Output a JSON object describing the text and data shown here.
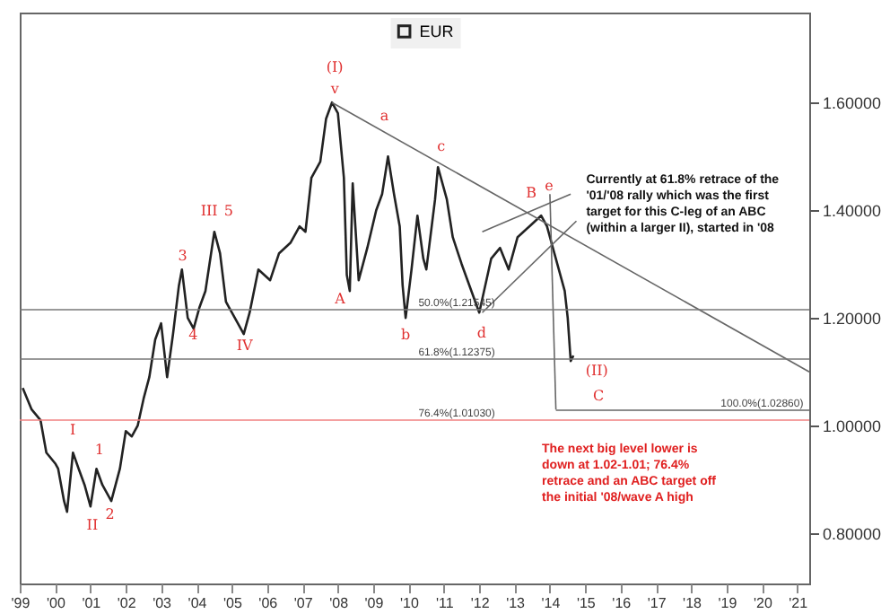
{
  "chart_data": {
    "type": "line",
    "legend": "top",
    "xlim": [
      "1999-07",
      "2021-11"
    ],
    "ylim": [
      0.707,
      1.767
    ],
    "xticks": [
      {
        "value": "1999-07",
        "label": "'99"
      },
      {
        "value": "2000-07",
        "label": "'00"
      },
      {
        "value": "2001-07",
        "label": "'01"
      },
      {
        "value": "2002-07",
        "label": "'02"
      },
      {
        "value": "2003-07",
        "label": "'03"
      },
      {
        "value": "2004-07",
        "label": "'04"
      },
      {
        "value": "2005-07",
        "label": "'05"
      },
      {
        "value": "2006-07",
        "label": "'06"
      },
      {
        "value": "2007-07",
        "label": "'07"
      },
      {
        "value": "2008-07",
        "label": "'08"
      },
      {
        "value": "2009-07",
        "label": "'09"
      },
      {
        "value": "2010-07",
        "label": "'10"
      },
      {
        "value": "2011-07",
        "label": "'11"
      },
      {
        "value": "2012-07",
        "label": "'12"
      },
      {
        "value": "2013-07",
        "label": "'13"
      },
      {
        "value": "2014-07",
        "label": "'14"
      },
      {
        "value": "2015-07",
        "label": "'15"
      },
      {
        "value": "2016-07",
        "label": "'16"
      },
      {
        "value": "2017-07",
        "label": "'17"
      },
      {
        "value": "2018-07",
        "label": "'18"
      },
      {
        "value": "2019-07",
        "label": "'19"
      },
      {
        "value": "2020-07",
        "label": "'20"
      },
      {
        "value": "2021-07",
        "label": "'21"
      }
    ],
    "yticks": [
      {
        "value": 1.6,
        "label": "1.60000"
      },
      {
        "value": 1.4,
        "label": "1.40000"
      },
      {
        "value": 1.2,
        "label": "1.20000"
      },
      {
        "value": 1.0,
        "label": "1.00000"
      },
      {
        "value": 0.8,
        "label": "0.80000"
      }
    ],
    "series": [
      {
        "name": "EUR",
        "color": "#222222",
        "x": [
          "1999-08",
          "1999-11",
          "2000-02",
          "2000-04",
          "2000-07",
          "2000-08",
          "2000-10",
          "2000-11",
          "2001-01",
          "2001-03",
          "2001-05",
          "2001-07",
          "2001-09",
          "2001-11",
          "2002-02",
          "2002-05",
          "2002-07",
          "2002-09",
          "2002-11",
          "2003-01",
          "2003-03",
          "2003-05",
          "2003-07",
          "2003-09",
          "2003-11",
          "2004-01",
          "2004-02",
          "2004-04",
          "2004-06",
          "2004-08",
          "2004-10",
          "2005-01",
          "2005-03",
          "2005-05",
          "2005-08",
          "2005-11",
          "2006-01",
          "2006-04",
          "2006-08",
          "2006-11",
          "2007-03",
          "2007-06",
          "2007-08",
          "2007-10",
          "2008-01",
          "2008-03",
          "2008-05",
          "2008-07",
          "2008-09",
          "2008-10",
          "2008-11",
          "2008-12",
          "2009-02",
          "2009-05",
          "2009-08",
          "2009-10",
          "2009-12",
          "2010-02",
          "2010-04",
          "2010-05",
          "2010-06",
          "2010-08",
          "2010-10",
          "2010-12",
          "2011-01",
          "2011-04",
          "2011-05",
          "2011-08",
          "2011-10",
          "2012-01",
          "2012-05",
          "2012-07",
          "2012-11",
          "2013-02",
          "2013-05",
          "2013-08",
          "2013-12",
          "2014-04",
          "2014-06",
          "2014-10",
          "2014-12",
          "2015-01",
          "2015-02",
          "2015-03"
        ],
        "values": [
          1.07,
          1.03,
          1.01,
          0.95,
          0.93,
          0.92,
          0.86,
          0.84,
          0.95,
          0.92,
          0.89,
          0.85,
          0.92,
          0.89,
          0.86,
          0.92,
          0.99,
          0.98,
          1.0,
          1.05,
          1.09,
          1.16,
          1.19,
          1.09,
          1.17,
          1.26,
          1.29,
          1.2,
          1.18,
          1.22,
          1.25,
          1.36,
          1.32,
          1.23,
          1.2,
          1.17,
          1.21,
          1.29,
          1.27,
          1.32,
          1.34,
          1.37,
          1.36,
          1.46,
          1.49,
          1.57,
          1.6,
          1.58,
          1.46,
          1.28,
          1.25,
          1.45,
          1.27,
          1.33,
          1.4,
          1.43,
          1.5,
          1.43,
          1.37,
          1.26,
          1.2,
          1.29,
          1.39,
          1.31,
          1.29,
          1.42,
          1.48,
          1.42,
          1.35,
          1.3,
          1.24,
          1.21,
          1.31,
          1.33,
          1.29,
          1.35,
          1.37,
          1.39,
          1.37,
          1.29,
          1.25,
          1.2,
          1.12,
          1.13
        ]
      },
      {
        "type": "line",
        "color": "#666666",
        "x": [
          "2008-05",
          "2021-11"
        ],
        "values": [
          1.6,
          1.1
        ]
      },
      {
        "type": "line",
        "color": "#666666",
        "x": [
          "2012-08",
          "2015-02"
        ],
        "values": [
          1.36,
          1.43
        ]
      },
      {
        "type": "line",
        "color": "#666666",
        "x": [
          "2012-08",
          "2015-04"
        ],
        "values": [
          1.21,
          1.38
        ]
      },
      {
        "type": "line",
        "color": "#666666",
        "x": [
          "2014-07",
          "2014-09"
        ],
        "values": [
          1.43,
          1.03
        ]
      },
      {
        "type": "line",
        "color": "#666666",
        "x": [
          "2014-09",
          "2021-11"
        ],
        "values": [
          1.0286,
          1.0286
        ]
      }
    ],
    "ref_lines": [
      {
        "axis": "y",
        "value": 1.21545,
        "label": "50.0%(1.21545)",
        "color": "#777777"
      },
      {
        "axis": "y",
        "value": 1.12375,
        "label": "61.8%(1.12375)",
        "color": "#777777"
      },
      {
        "axis": "y",
        "value": 1.0103,
        "label": "76.4%(1.01030)",
        "color": "#f08080"
      }
    ],
    "annotations": [
      "Currently at 61.8% retrace of the '01/'08 rally which was the first target for this C-leg of an ABC (within a larger II), started in '08",
      "The next big level lower is down at 1.02-1.01; 76.4% retrace and an ABC target off the initial '08/wave A high",
      {
        "text": "100.0%(1.02860)",
        "x": "2021-09",
        "y": 1.0286
      },
      "(I)",
      "v",
      "a",
      "c",
      "B",
      "e",
      "A",
      "b",
      "d",
      "(II)",
      "C",
      "III",
      "5",
      "3",
      "4",
      "IV",
      "I",
      "1",
      "II",
      "2"
    ]
  }
}
